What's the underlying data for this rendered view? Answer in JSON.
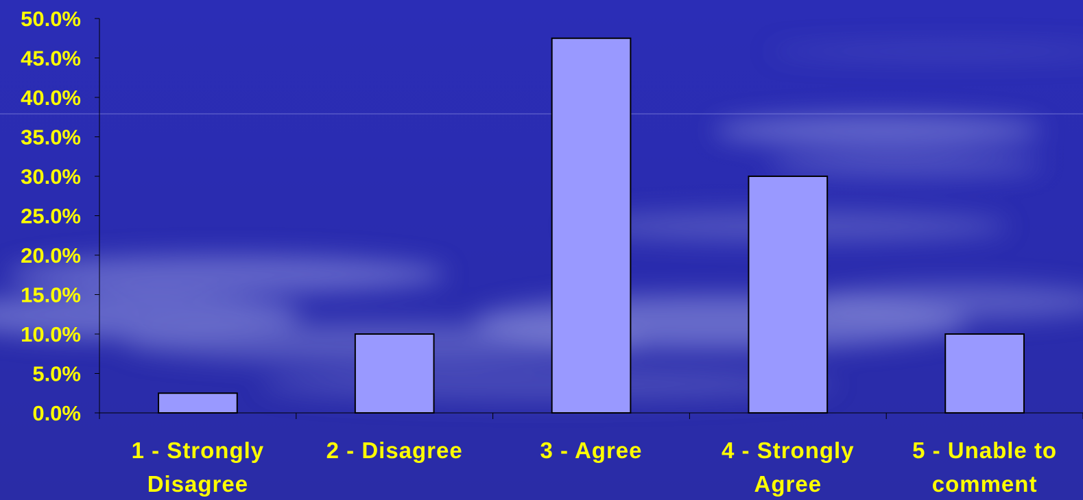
{
  "chart_data": {
    "type": "bar",
    "categories": [
      [
        "1 - Strongly",
        "Disagree"
      ],
      [
        "2 - Disagree"
      ],
      [
        "3 - Agree"
      ],
      [
        "4 - Strongly",
        "Agree"
      ],
      [
        "5 - Unable to",
        "comment"
      ]
    ],
    "values": [
      2.5,
      10.0,
      47.5,
      30.0,
      10.0
    ],
    "ylim": [
      0,
      50
    ],
    "yticks": [
      "0.0%",
      "5.0%",
      "10.0%",
      "15.0%",
      "20.0%",
      "25.0%",
      "30.0%",
      "35.0%",
      "40.0%",
      "45.0%",
      "50.0%"
    ],
    "title": "",
    "xlabel": "",
    "ylabel": "",
    "grid": false,
    "legend": "none",
    "colors": {
      "bar_fill": "#9999ff",
      "bar_stroke": "#000000",
      "axis": "#000000",
      "label": "#ffff00",
      "background": "#2a2cb0"
    }
  }
}
